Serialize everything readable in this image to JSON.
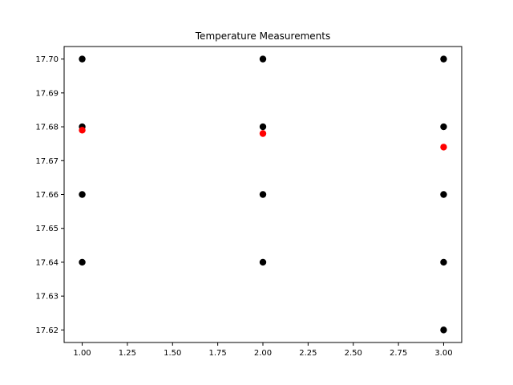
{
  "chart_data": {
    "type": "scatter",
    "title": "Temperature Measurements",
    "xlabel": "",
    "ylabel": "",
    "xlim": [
      0.9,
      3.1
    ],
    "ylim": [
      17.6163,
      17.7037
    ],
    "grid": false,
    "legend": "none",
    "x_ticks": [
      1.0,
      1.25,
      1.5,
      1.75,
      2.0,
      2.25,
      2.5,
      2.75,
      3.0
    ],
    "x_tick_labels": [
      "1.00",
      "1.25",
      "1.50",
      "1.75",
      "2.00",
      "2.25",
      "2.50",
      "2.75",
      "3.00"
    ],
    "y_ticks": [
      17.62,
      17.63,
      17.64,
      17.65,
      17.66,
      17.67,
      17.68,
      17.69,
      17.7
    ],
    "y_tick_labels": [
      "17.62",
      "17.63",
      "17.64",
      "17.65",
      "17.66",
      "17.67",
      "17.68",
      "17.69",
      "17.70"
    ],
    "series": [
      {
        "color": "#000000",
        "points": [
          [
            1,
            17.7
          ],
          [
            1,
            17.68
          ],
          [
            1,
            17.66
          ],
          [
            1,
            17.64
          ],
          [
            2,
            17.7
          ],
          [
            2,
            17.68
          ],
          [
            2,
            17.66
          ],
          [
            2,
            17.64
          ],
          [
            3,
            17.7
          ],
          [
            3,
            17.68
          ],
          [
            3,
            17.66
          ],
          [
            3,
            17.64
          ],
          [
            3,
            17.62
          ]
        ]
      },
      {
        "color": "#ff0000",
        "points": [
          [
            1,
            17.679
          ],
          [
            2,
            17.678
          ],
          [
            3,
            17.674
          ]
        ]
      }
    ]
  }
}
